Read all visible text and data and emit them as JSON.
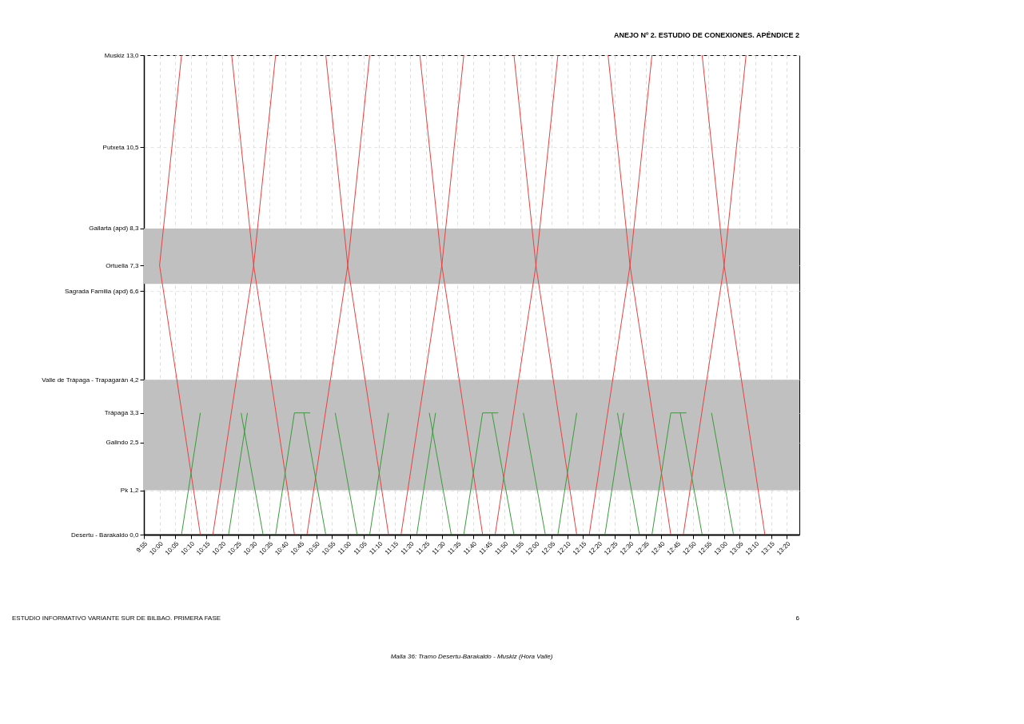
{
  "chart_data": {
    "type": "line",
    "title": "Malla 36: Tramo Desertu-Barakaldo - Muskiz (Hora Valle)",
    "annotations": [
      "ANEJO Nº 2. ESTUDIO DE CONEXIONES. APÉNDICE 2",
      "ESTUDIO INFORMATIVO VARIANTE SUR DE BILBAO. PRIMERA FASE",
      "6"
    ],
    "xlim": [
      9.9167,
      13.4
    ],
    "ylim": [
      0,
      13.0
    ],
    "xticks": [
      {
        "value": 9.9167,
        "label": "9:55"
      },
      {
        "value": 10.0,
        "label": "10:00"
      },
      {
        "value": 10.0833,
        "label": "10:05"
      },
      {
        "value": 10.1667,
        "label": "10:10"
      },
      {
        "value": 10.25,
        "label": "10:15"
      },
      {
        "value": 10.3333,
        "label": "10:20"
      },
      {
        "value": 10.4167,
        "label": "10:25"
      },
      {
        "value": 10.5,
        "label": "10:30"
      },
      {
        "value": 10.5833,
        "label": "10:35"
      },
      {
        "value": 10.6667,
        "label": "10:40"
      },
      {
        "value": 10.75,
        "label": "10:45"
      },
      {
        "value": 10.8333,
        "label": "10:50"
      },
      {
        "value": 10.9167,
        "label": "10:55"
      },
      {
        "value": 11.0,
        "label": "11:00"
      },
      {
        "value": 11.0833,
        "label": "11:05"
      },
      {
        "value": 11.1667,
        "label": "11:10"
      },
      {
        "value": 11.25,
        "label": "11:15"
      },
      {
        "value": 11.3333,
        "label": "11:20"
      },
      {
        "value": 11.4167,
        "label": "11:25"
      },
      {
        "value": 11.5,
        "label": "11:30"
      },
      {
        "value": 11.5833,
        "label": "11:35"
      },
      {
        "value": 11.6667,
        "label": "11:40"
      },
      {
        "value": 11.75,
        "label": "11:45"
      },
      {
        "value": 11.8333,
        "label": "11:50"
      },
      {
        "value": 11.9167,
        "label": "11:55"
      },
      {
        "value": 12.0,
        "label": "12:00"
      },
      {
        "value": 12.0833,
        "label": "12:05"
      },
      {
        "value": 12.1667,
        "label": "12:10"
      },
      {
        "value": 12.25,
        "label": "12:15"
      },
      {
        "value": 12.3333,
        "label": "12:20"
      },
      {
        "value": 12.4167,
        "label": "12:25"
      },
      {
        "value": 12.5,
        "label": "12:30"
      },
      {
        "value": 12.5833,
        "label": "12:35"
      },
      {
        "value": 12.6667,
        "label": "12:40"
      },
      {
        "value": 12.75,
        "label": "12:45"
      },
      {
        "value": 12.8333,
        "label": "12:50"
      },
      {
        "value": 12.9167,
        "label": "12:55"
      },
      {
        "value": 13.0,
        "label": "13:00"
      },
      {
        "value": 13.0833,
        "label": "13:05"
      },
      {
        "value": 13.1667,
        "label": "13:10"
      },
      {
        "value": 13.25,
        "label": "13:15"
      },
      {
        "value": 13.3333,
        "label": "13:20"
      }
    ],
    "yticks": [
      {
        "value": 0.0,
        "label": "Desertu - Barakaldo  0,0"
      },
      {
        "value": 1.2,
        "label": "Pk  1,2"
      },
      {
        "value": 2.5,
        "label": "Galindo  2,5"
      },
      {
        "value": 3.3,
        "label": "Trápaga  3,3"
      },
      {
        "value": 4.2,
        "label": "Valle de Trápaga - Trapagarán  4,2"
      },
      {
        "value": 6.6,
        "label": "Sagrada Familia (apd)  6,6"
      },
      {
        "value": 7.3,
        "label": "Ortuella  7,3"
      },
      {
        "value": 8.3,
        "label": "Gallarta (apd)  8,3"
      },
      {
        "value": 10.5,
        "label": "Putxeta  10,5"
      },
      {
        "value": 13.0,
        "label": "Muskiz  13,0"
      }
    ],
    "grid": true,
    "bands": [
      {
        "axis": "y",
        "from": 1.2,
        "to": 4.2,
        "color": "#c0c0c0"
      },
      {
        "axis": "y",
        "from": 6.8,
        "to": 8.3,
        "color": "#c0c0c0"
      }
    ],
    "series": [
      {
        "color": "#e8413f",
        "x": [
          10.1167,
          10.0,
          10.2167
        ],
        "values": [
          13.0,
          7.3,
          0.0
        ]
      },
      {
        "color": "#e8413f",
        "x": [
          10.3833,
          10.5,
          10.7167
        ],
        "values": [
          13.0,
          7.3,
          0.0
        ]
      },
      {
        "color": "#e8413f",
        "x": [
          10.2833,
          10.5,
          10.6167
        ],
        "values": [
          0.0,
          7.3,
          13.0
        ]
      },
      {
        "color": "#e8413f",
        "x": [
          10.8833,
          11.0,
          11.2167
        ],
        "values": [
          13.0,
          7.3,
          0.0
        ]
      },
      {
        "color": "#e8413f",
        "x": [
          10.7833,
          11.0,
          11.1167
        ],
        "values": [
          0.0,
          7.3,
          13.0
        ]
      },
      {
        "color": "#e8413f",
        "x": [
          11.3833,
          11.5,
          11.7167
        ],
        "values": [
          13.0,
          7.3,
          0.0
        ]
      },
      {
        "color": "#e8413f",
        "x": [
          11.2833,
          11.5,
          11.6167
        ],
        "values": [
          0.0,
          7.3,
          13.0
        ]
      },
      {
        "color": "#e8413f",
        "x": [
          11.8833,
          12.0,
          12.2167
        ],
        "values": [
          13.0,
          7.3,
          0.0
        ]
      },
      {
        "color": "#e8413f",
        "x": [
          11.7833,
          12.0,
          12.1167
        ],
        "values": [
          0.0,
          7.3,
          13.0
        ]
      },
      {
        "color": "#e8413f",
        "x": [
          12.3833,
          12.5,
          12.7167
        ],
        "values": [
          13.0,
          7.3,
          0.0
        ]
      },
      {
        "color": "#e8413f",
        "x": [
          12.2833,
          12.5,
          12.6167
        ],
        "values": [
          0.0,
          7.3,
          13.0
        ]
      },
      {
        "color": "#e8413f",
        "x": [
          12.8833,
          13.0,
          13.2167
        ],
        "values": [
          13.0,
          7.3,
          0.0
        ]
      },
      {
        "color": "#e8413f",
        "x": [
          12.7833,
          13.0,
          13.1167
        ],
        "values": [
          0.0,
          7.3,
          13.0
        ]
      },
      {
        "color": "#3a9a3a",
        "x": [
          10.1167,
          10.2167
        ],
        "values": [
          0.0,
          3.3
        ]
      },
      {
        "color": "#3a9a3a",
        "x": [
          10.3667,
          10.4667
        ],
        "values": [
          0.0,
          3.3
        ]
      },
      {
        "color": "#3a9a3a",
        "x": [
          10.4333,
          10.55
        ],
        "values": [
          3.3,
          0.0
        ]
      },
      {
        "color": "#3a9a3a",
        "x": [
          10.6167,
          10.7167,
          10.8
        ],
        "values": [
          0.0,
          3.3,
          3.3
        ]
      },
      {
        "color": "#3a9a3a",
        "x": [
          10.7667,
          10.8833
        ],
        "values": [
          3.3,
          0.0
        ]
      },
      {
        "color": "#3a9a3a",
        "x": [
          10.9333,
          11.05
        ],
        "values": [
          3.3,
          0.0
        ]
      },
      {
        "color": "#3a9a3a",
        "x": [
          11.1167,
          11.2167
        ],
        "values": [
          0.0,
          3.3
        ]
      },
      {
        "color": "#3a9a3a",
        "x": [
          11.3667,
          11.4667
        ],
        "values": [
          0.0,
          3.3
        ]
      },
      {
        "color": "#3a9a3a",
        "x": [
          11.4333,
          11.55
        ],
        "values": [
          3.3,
          0.0
        ]
      },
      {
        "color": "#3a9a3a",
        "x": [
          11.6167,
          11.7167,
          11.8
        ],
        "values": [
          0.0,
          3.3,
          3.3
        ]
      },
      {
        "color": "#3a9a3a",
        "x": [
          11.7667,
          11.8833
        ],
        "values": [
          3.3,
          0.0
        ]
      },
      {
        "color": "#3a9a3a",
        "x": [
          11.9333,
          12.05
        ],
        "values": [
          3.3,
          0.0
        ]
      },
      {
        "color": "#3a9a3a",
        "x": [
          12.1167,
          12.2167
        ],
        "values": [
          0.0,
          3.3
        ]
      },
      {
        "color": "#3a9a3a",
        "x": [
          12.3667,
          12.4667
        ],
        "values": [
          0.0,
          3.3
        ]
      },
      {
        "color": "#3a9a3a",
        "x": [
          12.4333,
          12.55
        ],
        "values": [
          3.3,
          0.0
        ]
      },
      {
        "color": "#3a9a3a",
        "x": [
          12.6167,
          12.7167,
          12.8
        ],
        "values": [
          0.0,
          3.3,
          3.3
        ]
      },
      {
        "color": "#3a9a3a",
        "x": [
          12.7667,
          12.8833
        ],
        "values": [
          3.3,
          0.0
        ]
      },
      {
        "color": "#3a9a3a",
        "x": [
          12.9333,
          13.05
        ],
        "values": [
          3.3,
          0.0
        ]
      }
    ]
  }
}
